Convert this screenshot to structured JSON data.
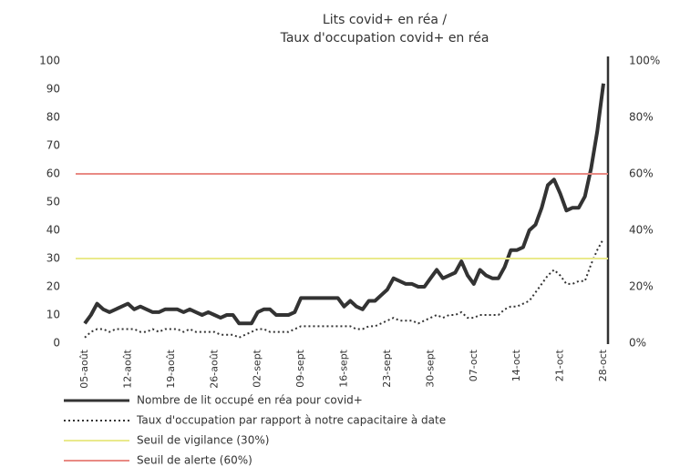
{
  "chart_data": {
    "type": "line",
    "title_lines": [
      "Lits covid+ en réa /",
      "Taux d'occupation covid+ en réa"
    ],
    "categories": [
      "05-août",
      null,
      null,
      null,
      null,
      null,
      null,
      "12-août",
      null,
      null,
      null,
      null,
      null,
      null,
      "19-août",
      null,
      null,
      null,
      null,
      null,
      null,
      "26-août",
      null,
      null,
      null,
      null,
      null,
      null,
      "02-sept",
      null,
      null,
      null,
      null,
      null,
      null,
      "09-sept",
      null,
      null,
      null,
      null,
      null,
      null,
      "16-sept",
      null,
      null,
      null,
      null,
      null,
      null,
      "23-sept",
      null,
      null,
      null,
      null,
      null,
      null,
      "30-sept",
      null,
      null,
      null,
      null,
      null,
      null,
      "07-oct",
      null,
      null,
      null,
      null,
      null,
      null,
      "14-oct",
      null,
      null,
      null,
      null,
      null,
      null,
      "21-oct",
      null,
      null,
      null,
      null,
      null,
      null,
      "28-oct"
    ],
    "ylim": [
      0,
      100
    ],
    "yticks": [
      0,
      10,
      20,
      30,
      40,
      50,
      60,
      70,
      80,
      90,
      100
    ],
    "y2lim": [
      0,
      100
    ],
    "y2ticks": [
      {
        "value": 0,
        "label": "0%"
      },
      {
        "value": 20,
        "label": "20%"
      },
      {
        "value": 40,
        "label": "40%"
      },
      {
        "value": 60,
        "label": "60%"
      },
      {
        "value": 80,
        "label": "80%"
      },
      {
        "value": 100,
        "label": "100%"
      }
    ],
    "series": [
      {
        "name": "Nombre de lit occupé en réa pour covid+",
        "color": "#333333",
        "style": "solid",
        "axis": "y",
        "values": [
          7,
          10,
          14,
          12,
          11,
          12,
          13,
          14,
          12,
          13,
          12,
          11,
          11,
          12,
          12,
          12,
          11,
          12,
          11,
          10,
          11,
          10,
          9,
          10,
          10,
          7,
          7,
          7,
          11,
          12,
          12,
          10,
          10,
          10,
          11,
          16,
          16,
          16,
          16,
          16,
          16,
          16,
          13,
          15,
          13,
          12,
          15,
          15,
          17,
          19,
          23,
          22,
          21,
          21,
          20,
          20,
          23,
          26,
          23,
          24,
          25,
          29,
          24,
          21,
          26,
          24,
          23,
          23,
          27,
          33,
          33,
          34,
          40,
          42,
          48,
          56,
          58,
          53,
          47,
          48,
          48,
          52,
          62,
          75,
          92
        ]
      },
      {
        "name": "Taux d'occupation par rapport à notre capacitaire à date",
        "color": "#333333",
        "style": "dotted",
        "axis": "y2",
        "values": [
          2,
          4,
          5,
          5,
          4,
          5,
          5,
          5,
          5,
          4,
          4,
          5,
          4,
          5,
          5,
          5,
          4,
          5,
          4,
          4,
          4,
          4,
          3,
          3,
          3,
          2,
          3,
          4,
          5,
          5,
          4,
          4,
          4,
          4,
          5,
          6,
          6,
          6,
          6,
          6,
          6,
          6,
          6,
          6,
          5,
          5,
          6,
          6,
          7,
          8,
          9,
          8,
          8,
          8,
          7,
          8,
          9,
          10,
          9,
          10,
          10,
          11,
          9,
          9,
          10,
          10,
          10,
          10,
          12,
          13,
          13,
          14,
          15,
          18,
          21,
          24,
          26,
          24,
          21,
          21,
          22,
          22,
          28,
          33,
          37
        ]
      },
      {
        "name": "Seuil de vigilance (30%)",
        "color": "#eaea8c",
        "style": "threshold",
        "axis": "y2",
        "value": 30
      },
      {
        "name": "Seuil de alerte (60%)",
        "color": "#e98a84",
        "style": "threshold",
        "axis": "y2",
        "value": 60
      }
    ]
  }
}
